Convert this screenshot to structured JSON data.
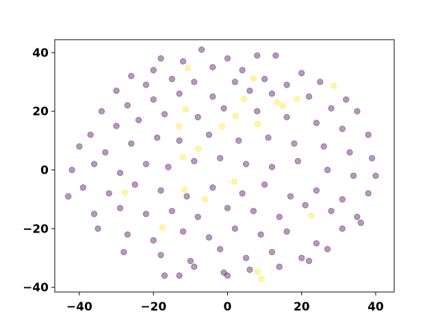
{
  "chart_data": {
    "type": "scatter",
    "xlim": [
      -46.65,
      45.0
    ],
    "ylim": [
      -41.6,
      44.4
    ],
    "xticks": [
      {
        "value": -40,
        "label": "−40"
      },
      {
        "value": -20,
        "label": "−20"
      },
      0,
      20,
      40
    ],
    "yticks": [
      {
        "value": -40,
        "label": "−40"
      },
      {
        "value": -20,
        "label": "−20"
      },
      0,
      20,
      40
    ],
    "grid": false,
    "series": [
      {
        "color": "#440154",
        "x": [
          -7,
          -18,
          -12,
          0,
          8,
          13,
          -26,
          -20,
          -4,
          4,
          20,
          -30,
          -22,
          -15,
          -9,
          2,
          10,
          16,
          25,
          32,
          -34,
          -27,
          -20,
          -13,
          -4,
          6,
          12,
          22,
          28,
          35,
          -37,
          -30,
          -24,
          -17,
          -8,
          -1,
          8,
          16,
          24,
          31,
          38,
          -40,
          -33,
          -26,
          -19,
          -13,
          -5,
          3,
          11,
          18,
          26,
          33,
          39,
          -42,
          -36,
          -29,
          -22,
          -16,
          -9,
          -2,
          5,
          12,
          19,
          27,
          34,
          40,
          -39,
          -32,
          -25,
          -18,
          -11,
          -4,
          4,
          10,
          17,
          24,
          31,
          38,
          -43,
          -36,
          -29,
          -22,
          -15,
          -8,
          0,
          7,
          14,
          21,
          28,
          35,
          -35,
          -27,
          -20,
          -12,
          -5,
          2,
          9,
          16,
          24,
          31,
          36,
          -28,
          -18,
          -10,
          -2,
          5,
          12,
          20,
          27,
          -17,
          -9,
          -1,
          6,
          14,
          22,
          -13,
          0
        ],
        "y": [
          41,
          38,
          37,
          38,
          39,
          39,
          32,
          34,
          35,
          34,
          33,
          27,
          29,
          31,
          30,
          30,
          31,
          29,
          30,
          24,
          20,
          22,
          24,
          26,
          25,
          27,
          26,
          25,
          21,
          20,
          12,
          15,
          17,
          19,
          18,
          21,
          20,
          18,
          16,
          14,
          12,
          8,
          6,
          9,
          11,
          10,
          12,
          10,
          11,
          9,
          8,
          6,
          4,
          0,
          2,
          -1,
          2,
          1,
          3,
          4,
          2,
          1,
          3,
          0,
          -2,
          -2,
          -6,
          -8,
          -5,
          -7,
          -9,
          -6,
          -8,
          -5,
          -9,
          -7,
          -10,
          -8,
          -9,
          -15,
          -13,
          -15,
          -14,
          -16,
          -13,
          -14,
          -16,
          -12,
          -14,
          -16,
          -20,
          -22,
          -24,
          -21,
          -23,
          -20,
          -22,
          -21,
          -25,
          -20,
          -18,
          -28,
          -29,
          -31,
          -27,
          -30,
          -28,
          -30,
          -27,
          -36,
          -33,
          -35,
          -34,
          -33,
          -31,
          -36,
          -36
        ]
      },
      {
        "color": "#fde725",
        "x": [
          -10.7,
          -11.3,
          -13.1,
          -12,
          -7.9,
          -6.1,
          -11.6,
          -17.6,
          -1.5,
          2.2,
          4.4,
          7,
          8.1,
          13.3,
          14.8,
          18.7,
          28.7,
          22.6,
          8.1,
          9.1,
          1.8,
          -27.7
        ],
        "y": [
          34.7,
          20.7,
          14.9,
          4.4,
          7.2,
          -10,
          -6.8,
          -19.6,
          14.9,
          18.4,
          24.2,
          31.2,
          15.6,
          23.1,
          21.9,
          24.2,
          28.7,
          -15.6,
          -34.7,
          -37.1,
          -4,
          -7.7
        ]
      }
    ]
  }
}
